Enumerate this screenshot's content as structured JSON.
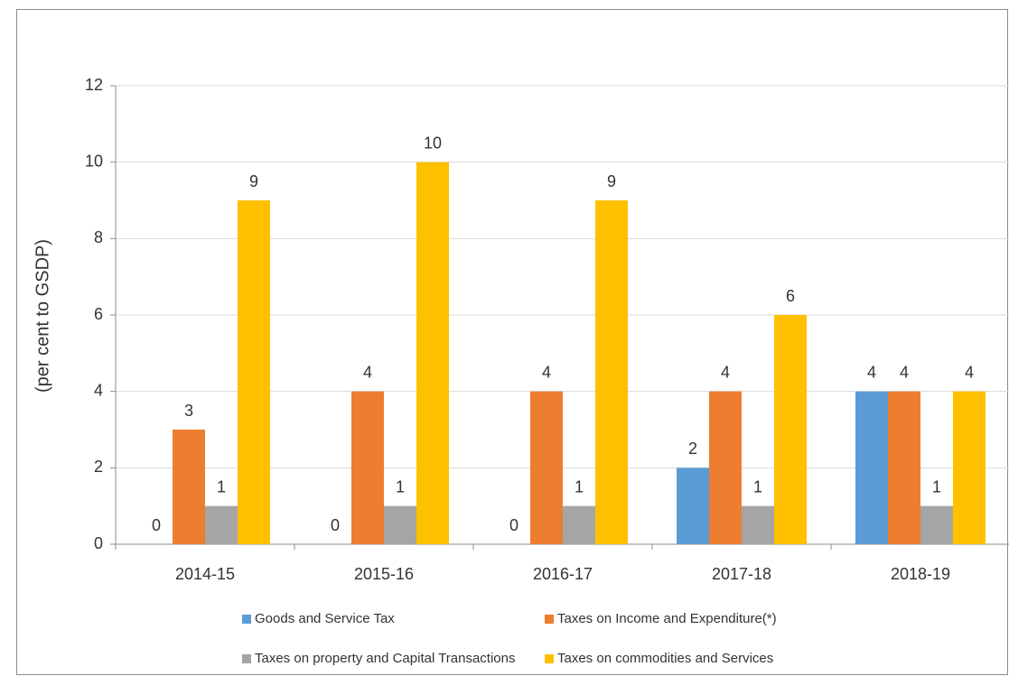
{
  "chart_data": {
    "type": "bar",
    "y_label": "(per cent to GSDP)",
    "categories": [
      "2014-15",
      "2015-16",
      "2016-17",
      "2017-18",
      "2018-19"
    ],
    "series": [
      {
        "name": "Goods and Service Tax",
        "color": "#5b9bd5",
        "values": [
          0,
          0,
          0,
          2,
          4
        ]
      },
      {
        "name": "Taxes on Income and Expenditure(*)",
        "color": "#ed7d31",
        "values": [
          3,
          4,
          4,
          4,
          4
        ]
      },
      {
        "name": "Taxes on property and Capital Transactions",
        "color": "#a5a5a5",
        "values": [
          1,
          1,
          1,
          1,
          1
        ]
      },
      {
        "name": "Taxes on commodities and Services",
        "color": "#ffc000",
        "values": [
          9,
          10,
          9,
          6,
          4
        ]
      }
    ],
    "ylim": [
      0,
      12
    ],
    "yticks": [
      0,
      2,
      4,
      6,
      8,
      10,
      12
    ],
    "grid": true,
    "legend": "bottom"
  }
}
